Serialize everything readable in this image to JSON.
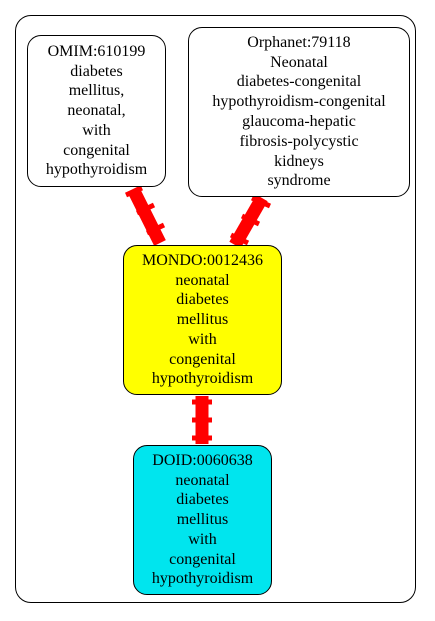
{
  "nodes": {
    "omim": {
      "lines": [
        "OMIM:610199",
        "diabetes",
        "mellitus,",
        "neonatal,",
        "with",
        "congenital",
        "hypothyroidism"
      ],
      "fill": "#ffffff"
    },
    "orphanet": {
      "lines": [
        "Orphanet:79118",
        "Neonatal",
        "diabetes-congenital",
        "hypothyroidism-congenital",
        "glaucoma-hepatic",
        "fibrosis-polycystic",
        "kidneys",
        "syndrome"
      ],
      "fill": "#ffffff"
    },
    "mondo": {
      "lines": [
        "MONDO:0012436",
        "neonatal",
        "diabetes",
        "mellitus",
        "with",
        "congenital",
        "hypothyroidism"
      ],
      "fill": "#ffff00"
    },
    "doid": {
      "lines": [
        "DOID:0060638",
        "neonatal",
        "diabetes",
        "mellitus",
        "with",
        "congenital",
        "hypothyroidism"
      ],
      "fill": "#00e5ee"
    }
  },
  "edges": [
    {
      "from": "omim",
      "to": "mondo",
      "color": "#ff0000"
    },
    {
      "from": "orphanet",
      "to": "mondo",
      "color": "#ff0000"
    },
    {
      "from": "mondo",
      "to": "doid",
      "color": "#ff0000"
    }
  ]
}
